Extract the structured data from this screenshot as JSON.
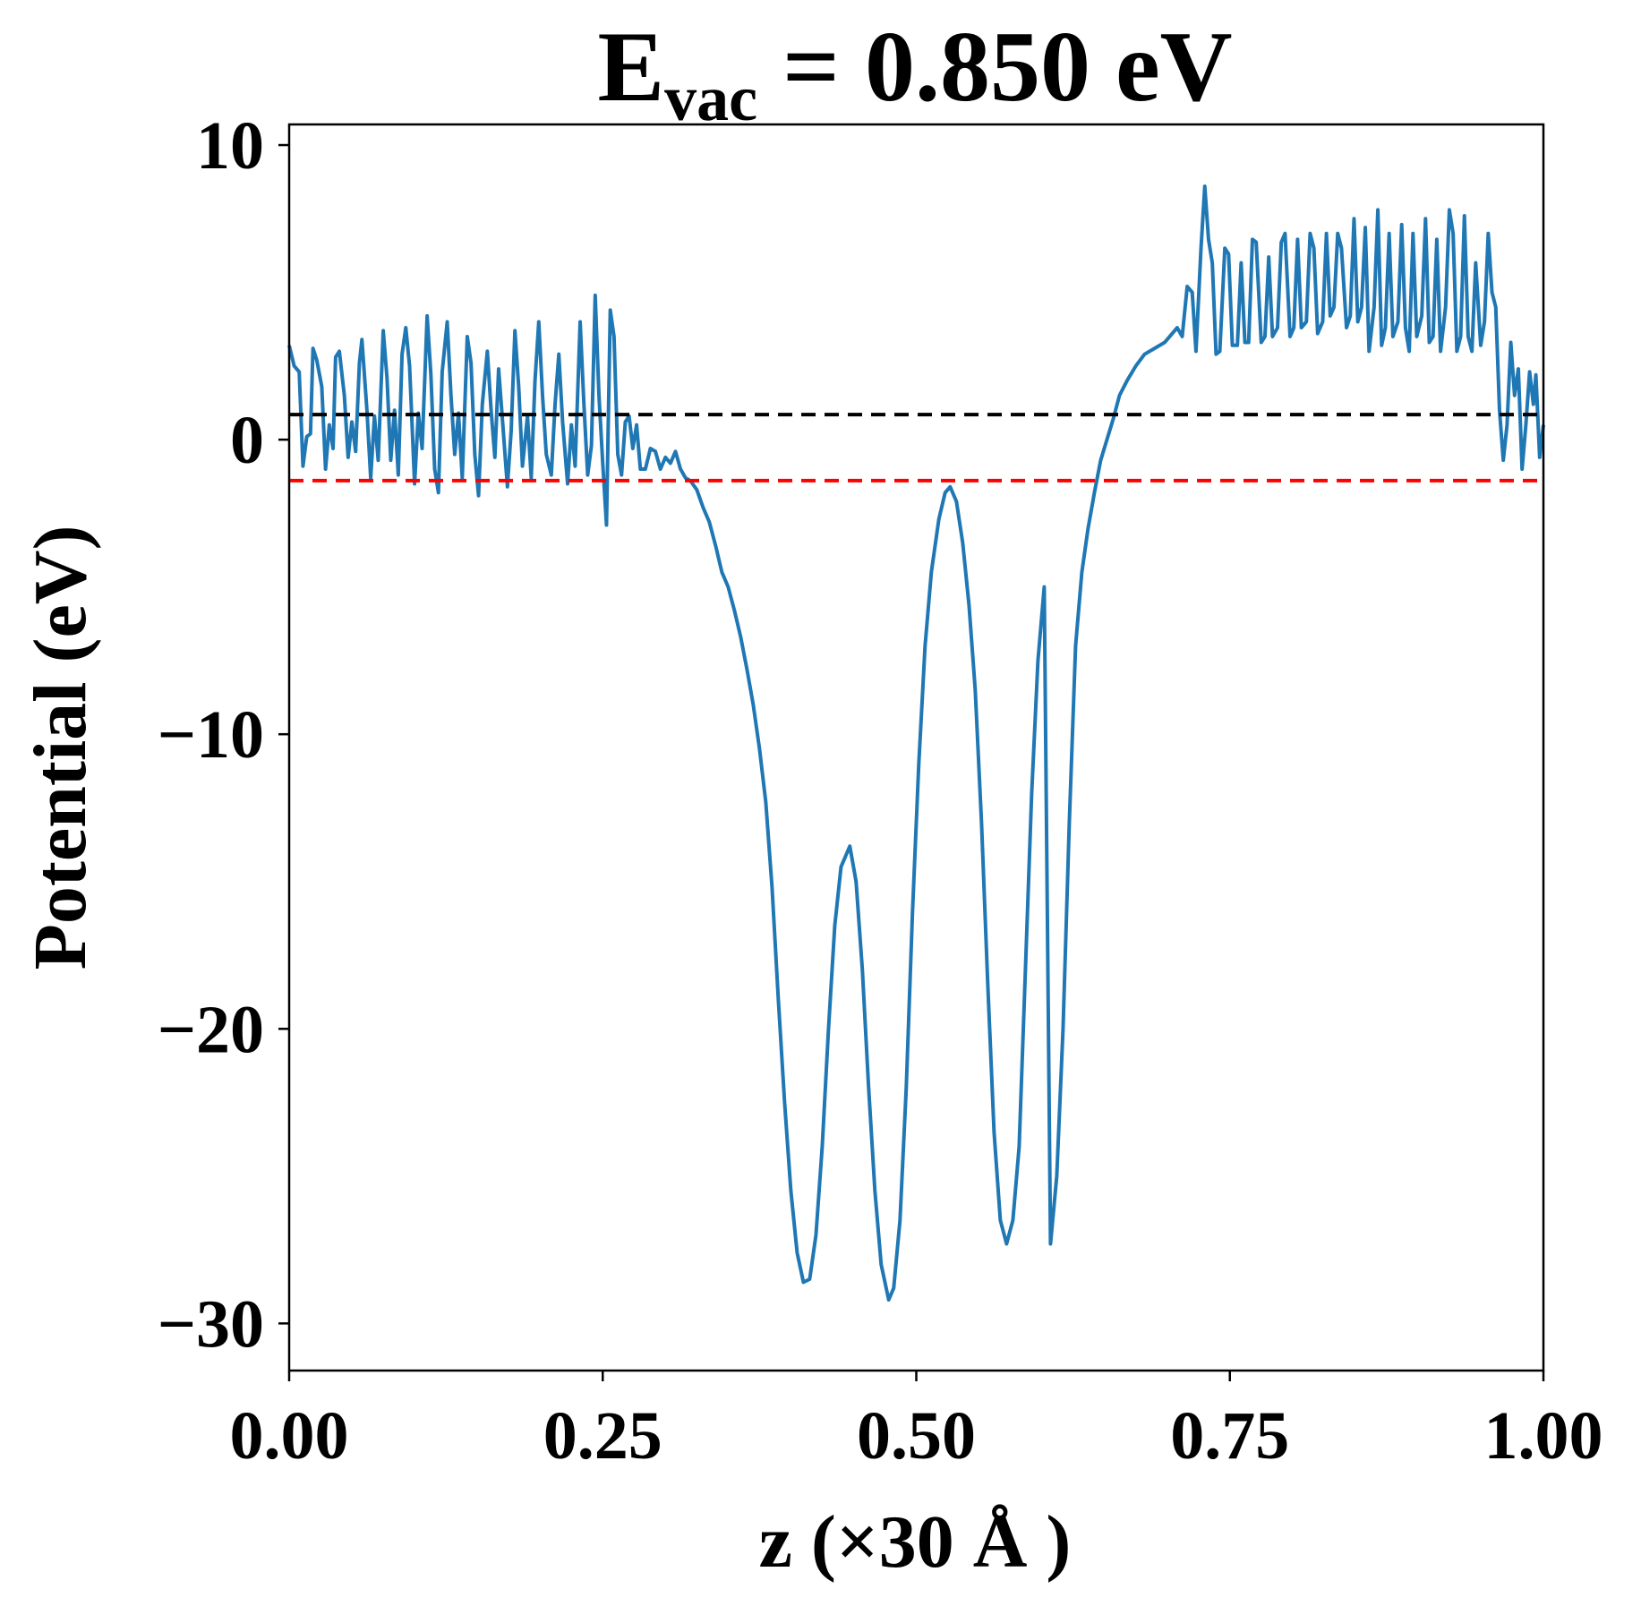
{
  "chart_data": {
    "type": "line",
    "title": [
      "E",
      "vac",
      " = 0.850 eV"
    ],
    "x_label": "z (×30 Å )",
    "y_label": "Potential (eV)",
    "xlim": [
      0,
      1
    ],
    "ylim": [
      -31.6,
      10.7
    ],
    "xticks": [
      {
        "value": 0,
        "label": "0.00"
      },
      0.25,
      {
        "value": 0.5,
        "label": "0.50"
      },
      0.75,
      {
        "value": 1,
        "label": "1.00"
      }
    ],
    "yticks": [
      {
        "value": -30,
        "label": "−30"
      },
      {
        "value": -20,
        "label": "−20"
      },
      {
        "value": -10,
        "label": "−10"
      },
      0,
      10
    ],
    "hlines": [
      {
        "value": 0.85,
        "color": "#000000"
      },
      {
        "value": -1.39,
        "color": "#ff0000"
      }
    ],
    "x": [
      0.0,
      0.004,
      0.008,
      0.011,
      0.014,
      0.017,
      0.019,
      0.022,
      0.026,
      0.029,
      0.032,
      0.035,
      0.037,
      0.04,
      0.044,
      0.047,
      0.05,
      0.053,
      0.056,
      0.058,
      0.062,
      0.065,
      0.068,
      0.071,
      0.075,
      0.078,
      0.081,
      0.084,
      0.087,
      0.09,
      0.093,
      0.096,
      0.1,
      0.103,
      0.106,
      0.11,
      0.113,
      0.116,
      0.119,
      0.122,
      0.126,
      0.129,
      0.132,
      0.135,
      0.138,
      0.142,
      0.145,
      0.148,
      0.151,
      0.154,
      0.158,
      0.161,
      0.164,
      0.167,
      0.17,
      0.174,
      0.177,
      0.18,
      0.183,
      0.186,
      0.19,
      0.193,
      0.196,
      0.199,
      0.202,
      0.205,
      0.209,
      0.212,
      0.215,
      0.218,
      0.222,
      0.225,
      0.228,
      0.232,
      0.235,
      0.238,
      0.241,
      0.244,
      0.247,
      0.25,
      0.253,
      0.256,
      0.259,
      0.262,
      0.265,
      0.268,
      0.271,
      0.274,
      0.277,
      0.28,
      0.284,
      0.288,
      0.292,
      0.296,
      0.3,
      0.304,
      0.308,
      0.312,
      0.316,
      0.32,
      0.325,
      0.33,
      0.335,
      0.34,
      0.345,
      0.35,
      0.355,
      0.36,
      0.365,
      0.37,
      0.375,
      0.38,
      0.385,
      0.39,
      0.395,
      0.4,
      0.405,
      0.41,
      0.415,
      0.42,
      0.425,
      0.43,
      0.435,
      0.44,
      0.447,
      0.452,
      0.457,
      0.462,
      0.467,
      0.472,
      0.478,
      0.482,
      0.487,
      0.492,
      0.497,
      0.502,
      0.507,
      0.512,
      0.518,
      0.523,
      0.527,
      0.532,
      0.537,
      0.542,
      0.547,
      0.552,
      0.557,
      0.562,
      0.567,
      0.572,
      0.577,
      0.582,
      0.587,
      0.592,
      0.597,
      0.602,
      0.607,
      0.612,
      0.617,
      0.622,
      0.627,
      0.632,
      0.637,
      0.642,
      0.647,
      0.652,
      0.657,
      0.662,
      0.668,
      0.675,
      0.682,
      0.69,
      0.698,
      0.704,
      0.708,
      0.712,
      0.716,
      0.72,
      0.723,
      0.727,
      0.73,
      0.733,
      0.736,
      0.739,
      0.742,
      0.746,
      0.749,
      0.752,
      0.756,
      0.759,
      0.762,
      0.765,
      0.768,
      0.771,
      0.775,
      0.778,
      0.781,
      0.784,
      0.788,
      0.791,
      0.794,
      0.798,
      0.801,
      0.804,
      0.807,
      0.811,
      0.814,
      0.817,
      0.82,
      0.824,
      0.827,
      0.83,
      0.833,
      0.836,
      0.839,
      0.843,
      0.846,
      0.849,
      0.852,
      0.855,
      0.858,
      0.861,
      0.865,
      0.868,
      0.871,
      0.874,
      0.877,
      0.88,
      0.884,
      0.887,
      0.89,
      0.893,
      0.896,
      0.899,
      0.903,
      0.906,
      0.909,
      0.912,
      0.915,
      0.918,
      0.922,
      0.925,
      0.928,
      0.931,
      0.934,
      0.937,
      0.94,
      0.943,
      0.946,
      0.95,
      0.953,
      0.956,
      0.959,
      0.962,
      0.965,
      0.968,
      0.971,
      0.974,
      0.977,
      0.98,
      0.983,
      0.986,
      0.989,
      0.992,
      0.994,
      0.997,
      1.0
    ],
    "series": [
      {
        "name": "potential",
        "color": "#1f77b4",
        "values": [
          3.2,
          2.5,
          2.3,
          -0.9,
          0.1,
          0.2,
          3.1,
          2.7,
          1.8,
          -1.0,
          0.5,
          -0.3,
          2.8,
          3.0,
          1.5,
          -0.6,
          0.6,
          -0.4,
          2.6,
          3.4,
          1.0,
          -1.3,
          0.8,
          -0.7,
          3.7,
          2.1,
          -0.7,
          1.0,
          -1.2,
          2.9,
          3.8,
          2.5,
          -1.5,
          0.9,
          -0.3,
          4.2,
          2.2,
          -1.0,
          -1.8,
          2.3,
          4.0,
          1.5,
          -0.5,
          0.9,
          -1.3,
          3.5,
          2.6,
          -0.5,
          -1.9,
          1.2,
          3.0,
          1.0,
          -0.6,
          2.4,
          0.7,
          -1.6,
          0.3,
          3.7,
          1.8,
          -0.9,
          0.8,
          -1.3,
          2.0,
          4.0,
          1.5,
          -0.5,
          -1.2,
          1.2,
          2.9,
          0.6,
          -1.5,
          0.5,
          -0.9,
          4.0,
          1.2,
          -1.2,
          -0.2,
          4.9,
          1.5,
          -0.8,
          -2.9,
          4.4,
          3.5,
          -0.5,
          -1.2,
          0.6,
          0.8,
          -0.3,
          0.5,
          -1.0,
          -1.0,
          -0.3,
          -0.4,
          -1.0,
          -0.6,
          -0.8,
          -0.4,
          -1.0,
          -1.3,
          -1.4,
          -1.7,
          -2.3,
          -2.8,
          -3.6,
          -4.5,
          -5.0,
          -5.8,
          -6.7,
          -7.8,
          -9.0,
          -10.5,
          -12.3,
          -15.2,
          -19.0,
          -22.5,
          -25.5,
          -27.6,
          -28.6,
          -28.5,
          -27.0,
          -24.0,
          -20.0,
          -16.5,
          -14.5,
          -13.8,
          -15.0,
          -18.0,
          -22.0,
          -25.5,
          -28.0,
          -29.2,
          -28.8,
          -26.5,
          -22.0,
          -16.0,
          -11.0,
          -7.0,
          -4.5,
          -2.7,
          -1.8,
          -1.6,
          -2.1,
          -3.5,
          -5.6,
          -8.5,
          -13.0,
          -18.5,
          -23.5,
          -26.5,
          -27.3,
          -26.5,
          -24.0,
          -18.0,
          -12.0,
          -7.5,
          -5.0,
          -27.3,
          -25.0,
          -20.0,
          -13.0,
          -7.0,
          -4.5,
          -3.0,
          -1.8,
          -0.7,
          0.0,
          0.7,
          1.5,
          2.0,
          2.5,
          2.9,
          3.1,
          3.3,
          3.6,
          3.8,
          3.5,
          5.2,
          5.0,
          3.0,
          6.5,
          8.6,
          6.8,
          6.0,
          2.9,
          3.0,
          6.5,
          6.3,
          3.2,
          3.2,
          6.0,
          3.3,
          3.3,
          6.8,
          6.7,
          3.3,
          3.5,
          6.2,
          3.5,
          3.8,
          6.7,
          7.0,
          3.5,
          3.8,
          6.8,
          3.8,
          4.0,
          7.0,
          6.5,
          3.6,
          4.0,
          7.0,
          4.2,
          4.5,
          7.0,
          6.5,
          3.8,
          4.2,
          7.5,
          4.0,
          4.5,
          7.2,
          3.0,
          4.5,
          7.8,
          3.2,
          3.8,
          7.0,
          3.5,
          4.0,
          7.3,
          3.8,
          3.0,
          7.0,
          3.5,
          4.2,
          7.5,
          3.3,
          3.5,
          6.8,
          3.0,
          4.5,
          7.8,
          7.0,
          3.0,
          3.5,
          7.6,
          3.5,
          3.0,
          6.0,
          3.2,
          4.0,
          7.0,
          5.0,
          4.5,
          1.0,
          -0.7,
          0.5,
          3.3,
          1.5,
          2.4,
          -1.0,
          0.5,
          2.3,
          1.2,
          2.2,
          -0.6,
          0.5
        ]
      }
    ]
  }
}
